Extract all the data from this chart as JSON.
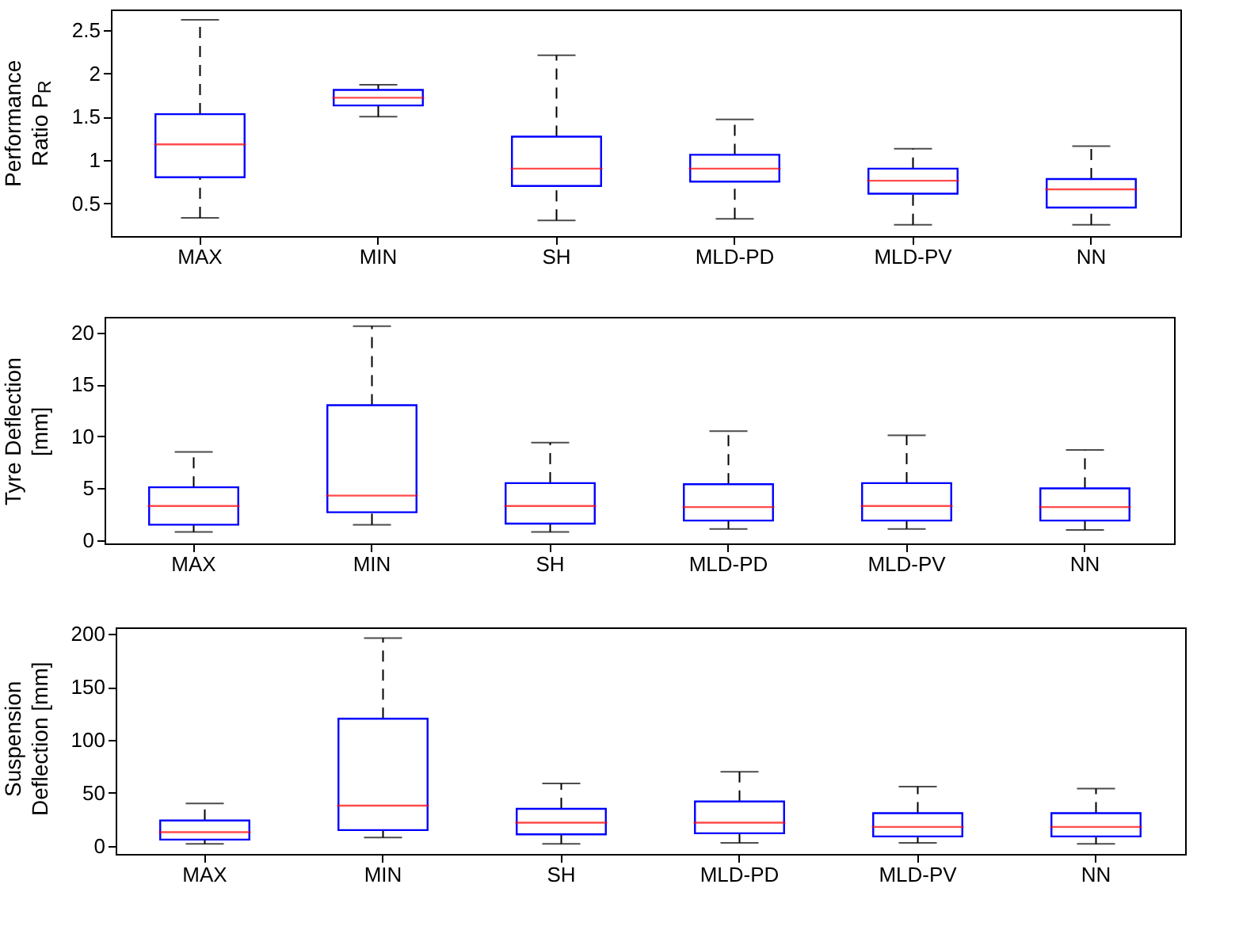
{
  "chart_data": [
    {
      "type": "box",
      "ylabel": "Performance Ratio P$_{R}$",
      "categories": [
        "MAX",
        "MIN",
        "SH",
        "MLD-PD",
        "MLD-PV",
        "NN"
      ],
      "ylim": [
        0.12,
        2.74
      ],
      "yticks": [
        0.5,
        1,
        1.5,
        2,
        2.5
      ],
      "grid": false,
      "line_style": "dashed",
      "series": [
        {
          "color": "#0000ff",
          "boxes": [
            {
              "low": 0.33,
              "q1": 0.8,
              "median": 1.18,
              "q3": 1.53,
              "high": 2.62
            },
            {
              "low": 1.5,
              "q1": 1.63,
              "median": 1.72,
              "q3": 1.81,
              "high": 1.87
            },
            {
              "low": 0.3,
              "q1": 0.7,
              "median": 0.9,
              "q3": 1.27,
              "high": 2.21
            },
            {
              "low": 0.32,
              "q1": 0.75,
              "median": 0.9,
              "q3": 1.06,
              "high": 1.47
            },
            {
              "low": 0.25,
              "q1": 0.61,
              "median": 0.76,
              "q3": 0.9,
              "high": 1.13
            },
            {
              "low": 0.25,
              "q1": 0.45,
              "median": 0.66,
              "q3": 0.78,
              "high": 1.16
            }
          ]
        }
      ]
    },
    {
      "type": "box",
      "ylabel": "Tyre Deflection [mm]",
      "categories": [
        "MAX",
        "MIN",
        "SH",
        "MLD-PD",
        "MLD-PV",
        "NN"
      ],
      "ylim": [
        -0.3,
        21.5
      ],
      "yticks": [
        0,
        5,
        10,
        15,
        20
      ],
      "grid": false,
      "line_style": "dashed",
      "series": [
        {
          "color": "#0000ff",
          "boxes": [
            {
              "low": 0.8,
              "q1": 1.5,
              "median": 3.3,
              "q3": 5.1,
              "high": 8.5
            },
            {
              "low": 1.5,
              "q1": 2.7,
              "median": 4.3,
              "q3": 13,
              "high": 20.6
            },
            {
              "low": 0.8,
              "q1": 1.6,
              "median": 3.3,
              "q3": 5.5,
              "high": 9.4
            },
            {
              "low": 1.1,
              "q1": 1.9,
              "median": 3.2,
              "q3": 5.4,
              "high": 10.5
            },
            {
              "low": 1.1,
              "q1": 1.9,
              "median": 3.3,
              "q3": 5.5,
              "high": 10.1
            },
            {
              "low": 1.0,
              "q1": 1.9,
              "median": 3.2,
              "q3": 5.0,
              "high": 8.7
            }
          ]
        }
      ]
    },
    {
      "type": "box",
      "ylabel": "Suspension Deflection [mm]",
      "categories": [
        "MAX",
        "MIN",
        "SH",
        "MLD-PD",
        "MLD-PV",
        "NN"
      ],
      "ylim": [
        -7.5,
        206
      ],
      "yticks": [
        0,
        50,
        100,
        150,
        200
      ],
      "grid": false,
      "line_style": "dashed",
      "series": [
        {
          "color": "#0000ff",
          "boxes": [
            {
              "low": 2,
              "q1": 6,
              "median": 13,
              "q3": 24,
              "high": 40
            },
            {
              "low": 8,
              "q1": 15,
              "median": 38,
              "q3": 120,
              "high": 196
            },
            {
              "low": 2,
              "q1": 11,
              "median": 22,
              "q3": 35,
              "high": 59
            },
            {
              "low": 3,
              "q1": 12,
              "median": 22,
              "q3": 42,
              "high": 70
            },
            {
              "low": 3,
              "q1": 9,
              "median": 18,
              "q3": 31,
              "high": 56
            },
            {
              "low": 2,
              "q1": 9,
              "median": 18,
              "q3": 31,
              "high": 54
            }
          ]
        }
      ]
    }
  ]
}
